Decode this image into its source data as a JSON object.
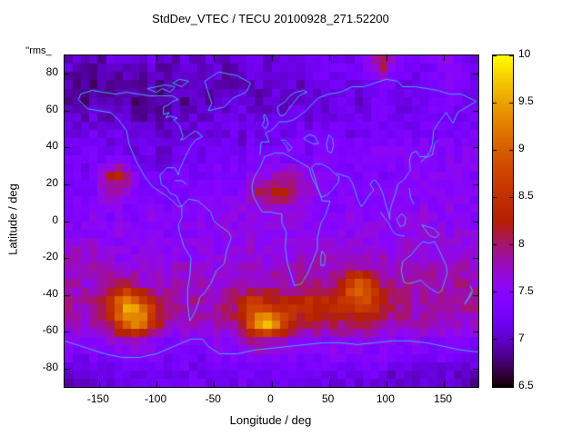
{
  "chart_data": {
    "type": "heatmap",
    "title": "StdDev_VTEC / TECU 20100928_271.52200",
    "key_label": "''rms_",
    "xlabel": "Longitude / deg",
    "ylabel": "Latitude / deg",
    "value_units": "TECU",
    "xlim": [
      -180,
      180
    ],
    "ylim": [
      -90,
      90
    ],
    "zmin": 6.5,
    "zmax": 10,
    "x_ticks": [
      -150,
      -100,
      -50,
      0,
      50,
      100,
      150
    ],
    "y_ticks": [
      -80,
      -60,
      -40,
      -20,
      0,
      20,
      40,
      60,
      80
    ],
    "colorbar_ticks": [
      6.5,
      7,
      7.5,
      8,
      8.5,
      9,
      9.5,
      10
    ],
    "palette": "gnuplot pm3d default black-purple-violet-red-orange-yellow (rgbformulae 7,5,15)",
    "coastline_color": "#47aaf5",
    "grid": {
      "lon_center_start": -175,
      "lon_step": 10,
      "lat_center_start": 85,
      "lat_step": -10,
      "note": "values[row][col]; rows run from lat 85N down to 85S, cols from lon 175W to 175E; estimated VTEC standard deviation in TECU"
    },
    "values": [
      [
        7.0,
        7.0,
        6.9,
        7.0,
        7.1,
        7.0,
        7.0,
        7.1,
        7.0,
        7.0,
        7.1,
        7.0,
        7.1,
        7.0,
        7.0,
        7.1,
        7.2,
        7.1,
        7.2,
        7.1,
        7.2,
        7.3,
        7.2,
        7.3,
        7.2,
        7.3,
        7.5,
        8.3,
        7.6,
        7.3,
        7.2,
        7.3,
        7.4,
        7.5,
        7.4,
        7.2
      ],
      [
        6.9,
        6.9,
        6.8,
        6.9,
        6.9,
        6.8,
        6.9,
        6.9,
        6.8,
        6.9,
        7.0,
        6.9,
        7.0,
        7.0,
        6.9,
        7.0,
        7.0,
        7.1,
        7.0,
        7.1,
        7.0,
        7.1,
        7.1,
        7.2,
        7.1,
        7.2,
        7.2,
        7.4,
        7.3,
        7.2,
        7.3,
        7.2,
        7.3,
        7.4,
        7.3,
        7.2
      ],
      [
        6.9,
        6.8,
        6.9,
        6.9,
        6.8,
        6.9,
        6.8,
        6.9,
        6.9,
        7.0,
        6.9,
        7.0,
        6.9,
        7.0,
        7.0,
        7.1,
        7.0,
        7.0,
        7.1,
        7.0,
        7.1,
        7.0,
        7.1,
        7.1,
        7.2,
        7.1,
        7.2,
        7.2,
        7.3,
        7.2,
        7.2,
        7.3,
        7.2,
        7.3,
        7.3,
        7.2
      ],
      [
        7.1,
        7.0,
        7.1,
        7.0,
        7.1,
        7.0,
        6.9,
        7.0,
        6.9,
        7.0,
        7.0,
        7.1,
        7.0,
        7.1,
        7.1,
        7.2,
        7.1,
        7.1,
        7.2,
        7.1,
        7.2,
        7.1,
        7.2,
        7.2,
        7.1,
        7.2,
        7.3,
        7.2,
        7.3,
        7.2,
        7.3,
        7.3,
        7.2,
        7.3,
        7.2,
        7.3
      ],
      [
        7.2,
        7.1,
        7.2,
        7.1,
        7.2,
        7.1,
        7.0,
        7.1,
        7.0,
        7.1,
        7.1,
        7.2,
        7.1,
        7.2,
        7.2,
        7.1,
        7.2,
        7.2,
        7.3,
        7.2,
        7.3,
        7.2,
        7.3,
        7.3,
        7.2,
        7.3,
        7.3,
        7.4,
        7.3,
        7.4,
        7.3,
        7.4,
        7.3,
        7.4,
        7.4,
        7.3
      ],
      [
        7.3,
        7.2,
        7.3,
        7.2,
        7.3,
        7.2,
        7.1,
        7.2,
        7.1,
        7.2,
        7.2,
        7.3,
        7.2,
        7.3,
        7.3,
        7.2,
        7.3,
        7.3,
        7.4,
        7.3,
        7.4,
        7.3,
        7.4,
        7.4,
        7.3,
        7.4,
        7.4,
        7.5,
        7.4,
        7.5,
        7.4,
        7.5,
        7.4,
        7.5,
        7.4,
        7.5
      ],
      [
        7.3,
        7.2,
        7.4,
        7.8,
        8.4,
        7.9,
        7.4,
        7.3,
        7.2,
        7.3,
        7.3,
        7.2,
        7.3,
        7.4,
        7.3,
        7.4,
        7.5,
        7.6,
        7.8,
        7.9,
        7.8,
        7.6,
        7.4,
        7.4,
        7.3,
        7.4,
        7.4,
        7.3,
        7.4,
        7.4,
        7.5,
        7.4,
        7.5,
        7.4,
        7.5,
        7.4
      ],
      [
        7.4,
        7.3,
        7.4,
        7.6,
        7.8,
        7.5,
        7.4,
        7.3,
        7.4,
        7.3,
        7.4,
        7.3,
        7.4,
        7.5,
        7.4,
        7.6,
        7.9,
        8.2,
        8.3,
        8.1,
        7.9,
        7.6,
        7.5,
        7.4,
        7.5,
        7.4,
        7.5,
        7.4,
        7.5,
        7.4,
        7.5,
        7.5,
        7.4,
        7.5,
        7.4,
        7.5
      ],
      [
        7.4,
        7.4,
        7.5,
        7.4,
        7.5,
        7.4,
        7.4,
        7.5,
        7.4,
        7.5,
        7.4,
        7.5,
        7.4,
        7.5,
        7.5,
        7.6,
        7.5,
        7.6,
        7.5,
        7.6,
        7.5,
        7.4,
        7.5,
        7.4,
        7.5,
        7.5,
        7.4,
        7.5,
        7.5,
        7.6,
        7.5,
        7.6,
        7.5,
        7.6,
        7.5,
        7.4
      ],
      [
        7.5,
        7.4,
        7.5,
        7.4,
        7.5,
        7.5,
        7.4,
        7.5,
        7.5,
        7.4,
        7.5,
        7.5,
        7.6,
        7.5,
        7.6,
        7.5,
        7.6,
        7.5,
        7.6,
        7.5,
        7.6,
        7.5,
        7.6,
        7.5,
        7.5,
        7.6,
        7.5,
        7.6,
        7.5,
        7.6,
        7.5,
        7.6,
        7.6,
        7.5,
        7.6,
        7.5
      ],
      [
        7.7,
        7.8,
        7.7,
        7.6,
        7.5,
        7.6,
        7.5,
        7.6,
        7.5,
        7.6,
        7.5,
        7.6,
        7.6,
        7.5,
        7.6,
        7.6,
        7.7,
        7.6,
        7.7,
        7.6,
        7.7,
        7.6,
        7.7,
        7.6,
        7.7,
        7.6,
        7.7,
        7.7,
        7.6,
        7.7,
        7.6,
        7.7,
        7.6,
        7.7,
        7.6,
        7.7
      ],
      [
        7.8,
        7.7,
        7.8,
        7.7,
        7.6,
        7.7,
        7.6,
        7.7,
        7.6,
        7.7,
        7.7,
        7.6,
        7.7,
        7.6,
        7.7,
        7.7,
        7.8,
        7.7,
        7.8,
        7.7,
        7.8,
        7.7,
        7.8,
        7.7,
        7.8,
        7.8,
        7.7,
        7.8,
        7.7,
        7.8,
        7.7,
        7.8,
        7.7,
        7.8,
        7.8,
        7.7
      ],
      [
        7.8,
        7.7,
        7.8,
        7.9,
        8.0,
        8.1,
        7.9,
        7.8,
        7.7,
        7.8,
        7.7,
        7.8,
        7.8,
        7.7,
        7.8,
        7.8,
        7.9,
        7.8,
        7.9,
        7.8,
        7.9,
        8.0,
        7.9,
        8.0,
        8.6,
        9.3,
        8.8,
        8.0,
        7.9,
        7.8,
        7.9,
        7.8,
        7.9,
        7.8,
        7.9,
        7.8
      ],
      [
        7.9,
        7.8,
        7.9,
        8.3,
        9.0,
        9.8,
        9.2,
        8.6,
        8.0,
        7.9,
        7.8,
        7.9,
        7.8,
        7.9,
        8.0,
        8.3,
        8.8,
        8.5,
        8.3,
        8.5,
        8.4,
        8.6,
        8.4,
        8.5,
        8.6,
        8.8,
        8.7,
        8.4,
        8.1,
        7.9,
        7.8,
        7.9,
        7.8,
        7.9,
        7.8,
        7.9
      ],
      [
        7.8,
        7.7,
        7.8,
        8.0,
        8.6,
        9.3,
        9.6,
        8.8,
        8.1,
        7.8,
        7.7,
        7.8,
        7.7,
        7.8,
        7.9,
        8.2,
        9.2,
        10.0,
        9.4,
        8.6,
        8.2,
        8.1,
        8.0,
        8.1,
        8.0,
        8.1,
        8.0,
        7.9,
        7.8,
        7.9,
        7.8,
        7.9,
        7.8,
        7.7,
        7.8,
        7.7
      ],
      [
        7.5,
        7.4,
        7.5,
        7.6,
        7.7,
        7.8,
        7.7,
        7.6,
        7.5,
        7.4,
        7.5,
        7.4,
        7.5,
        7.6,
        7.5,
        7.7,
        7.9,
        8.0,
        7.8,
        7.6,
        7.5,
        7.6,
        7.5,
        7.6,
        7.5,
        7.6,
        7.5,
        7.4,
        7.5,
        7.4,
        7.5,
        7.4,
        7.5,
        7.4,
        7.5,
        7.4
      ],
      [
        7.3,
        7.2,
        7.3,
        7.2,
        7.3,
        7.4,
        7.3,
        7.4,
        7.3,
        7.2,
        7.3,
        7.2,
        7.3,
        7.4,
        7.3,
        7.4,
        7.5,
        7.4,
        7.5,
        7.4,
        7.3,
        7.4,
        7.3,
        7.4,
        7.3,
        7.4,
        7.3,
        7.4,
        7.3,
        7.2,
        7.3,
        7.2,
        7.3,
        7.2,
        7.3,
        7.2
      ],
      [
        7.0,
        7.1,
        7.0,
        7.1,
        7.2,
        7.1,
        7.2,
        7.1,
        7.2,
        7.1,
        7.2,
        7.3,
        7.2,
        7.3,
        7.2,
        7.3,
        7.2,
        7.3,
        7.2,
        7.3,
        7.2,
        7.1,
        7.2,
        7.1,
        7.2,
        7.1,
        7.2,
        7.1,
        7.0,
        7.1,
        7.0,
        7.1,
        7.0,
        7.1,
        7.0,
        6.9
      ]
    ],
    "coastlines": [
      [
        -168,
        66,
        -160,
        61,
        -150,
        60,
        -140,
        59,
        -133,
        55,
        -126,
        49,
        -124,
        42,
        -118,
        33,
        -110,
        24,
        -104,
        19,
        -97,
        16,
        -92,
        14,
        -86,
        11,
        -81,
        8,
        -78,
        8,
        -80,
        10,
        -83,
        14,
        -88,
        15,
        -91,
        18,
        -96,
        20,
        -97,
        25,
        -91,
        29,
        -84,
        29,
        -81,
        25,
        -80,
        28,
        -75,
        35,
        -70,
        41,
        -66,
        44,
        -60,
        46,
        -66,
        49,
        -71,
        47,
        -75,
        45,
        -79,
        44,
        -77,
        46,
        -80,
        52,
        -85,
        55,
        -82,
        56,
        -88,
        57,
        -92,
        56,
        -89,
        59,
        -94,
        58,
        -94,
        62,
        -90,
        63,
        -86,
        65,
        -81,
        66,
        -86,
        68,
        -96,
        68,
        -106,
        68,
        -116,
        69,
        -126,
        70,
        -136,
        69,
        -146,
        70,
        -156,
        71,
        -166,
        69,
        -168,
        66
      ],
      [
        -55,
        60,
        -48,
        61,
        -41,
        62,
        -33,
        67,
        -22,
        70,
        -18,
        75,
        -30,
        79,
        -46,
        81,
        -58,
        76,
        -55,
        70,
        -52,
        64,
        -55,
        60
      ],
      [
        -78,
        8,
        -72,
        12,
        -64,
        11,
        -60,
        9,
        -53,
        5,
        -50,
        0,
        -44,
        -3,
        -37,
        -6,
        -35,
        -9,
        -39,
        -16,
        -41,
        -23,
        -48,
        -27,
        -53,
        -34,
        -58,
        -39,
        -62,
        -41,
        -65,
        -47,
        -69,
        -52,
        -71,
        -54,
        -72,
        -50,
        -73,
        -44,
        -73,
        -37,
        -71,
        -30,
        -70,
        -20,
        -76,
        -14,
        -80,
        -6,
        -81,
        -2,
        -78,
        2,
        -78,
        8
      ],
      [
        -6,
        35,
        -10,
        29,
        -15,
        24,
        -17,
        19,
        -16,
        14,
        -12,
        9,
        -8,
        5,
        -1,
        5,
        6,
        4,
        9,
        4,
        9,
        -1,
        13,
        -6,
        12,
        -14,
        14,
        -23,
        18,
        -31,
        20,
        -35,
        26,
        -34,
        31,
        -29,
        35,
        -23,
        40,
        -15,
        40,
        -9,
        43,
        -1,
        47,
        3,
        51,
        11,
        44,
        11,
        43,
        14,
        39,
        19,
        35,
        24,
        33,
        29,
        22,
        33,
        10,
        37,
        3,
        37,
        -6,
        35
      ],
      [
        -10,
        36,
        -9,
        43,
        -2,
        43,
        -5,
        48,
        -1,
        49,
        3,
        51,
        7,
        54,
        11,
        54,
        13,
        54,
        19,
        55,
        24,
        57,
        28,
        59,
        30,
        60
      ],
      [
        8,
        57,
        6,
        59,
        5,
        62,
        12,
        65,
        16,
        68,
        21,
        70,
        28,
        71,
        31,
        70,
        27,
        69,
        24,
        68,
        19,
        64,
        14,
        60,
        12,
        58,
        8,
        57
      ],
      [
        -5,
        50,
        -3,
        53,
        -4,
        56,
        -6,
        58,
        -7,
        57,
        -6,
        55,
        -8,
        52,
        -5,
        50
      ],
      [
        28,
        45,
        33,
        47,
        38,
        46,
        41,
        42,
        36,
        42,
        30,
        44,
        28,
        45
      ],
      [
        50,
        47,
        53,
        45,
        54,
        41,
        52,
        37,
        49,
        38,
        48,
        42,
        50,
        47
      ],
      [
        30,
        60,
        36,
        64,
        41,
        67,
        50,
        69,
        60,
        70,
        70,
        73,
        80,
        73,
        90,
        75,
        100,
        77,
        110,
        76,
        114,
        73,
        125,
        73,
        135,
        72,
        145,
        71,
        155,
        69,
        165,
        69,
        172,
        67,
        178,
        65
      ],
      [
        178,
        65,
        170,
        62,
        162,
        59,
        158,
        53,
        152,
        59,
        146,
        54,
        141,
        49,
        140,
        42,
        138,
        38,
        135,
        35,
        129,
        35,
        126,
        38,
        122,
        37,
        120,
        33,
        121,
        28,
        116,
        23,
        110,
        20,
        108,
        15,
        105,
        10,
        103,
        5,
        103,
        1,
        101,
        6,
        99,
        10,
        97,
        15,
        94,
        19,
        91,
        22,
        88,
        22,
        86,
        20,
        89,
        17,
        85,
        14,
        80,
        9,
        78,
        8,
        75,
        12,
        72,
        18,
        70,
        21,
        67,
        24,
        61,
        25,
        57,
        26
      ],
      [
        35,
        29,
        39,
        21,
        43,
        13,
        48,
        14,
        53,
        17,
        58,
        21,
        59,
        24,
        55,
        26,
        50,
        29,
        44,
        31,
        38,
        31,
        35,
        29
      ],
      [
        114,
        -22,
        113,
        -27,
        115,
        -33,
        119,
        -34,
        125,
        -33,
        130,
        -32,
        135,
        -35,
        139,
        -37,
        145,
        -39,
        148,
        -38,
        150,
        -34,
        153,
        -28,
        152,
        -24,
        149,
        -20,
        146,
        -16,
        142,
        -11,
        137,
        -12,
        132,
        -11,
        127,
        -14,
        122,
        -18,
        114,
        -22
      ],
      [
        -180,
        -65,
        -160,
        -69,
        -145,
        -72,
        -130,
        -74,
        -115,
        -74,
        -100,
        -72,
        -85,
        -68,
        -70,
        -64,
        -60,
        -64,
        -55,
        -68,
        -45,
        -72,
        -30,
        -72,
        -15,
        -70,
        0,
        -69,
        15,
        -68,
        30,
        -67,
        45,
        -66,
        60,
        -66,
        75,
        -67,
        90,
        -66,
        105,
        -65,
        120,
        -65,
        135,
        -66,
        150,
        -68,
        165,
        -70,
        180,
        -71
      ],
      [
        44,
        -16,
        47,
        -19,
        46,
        -24,
        43,
        -24,
        43,
        -19,
        44,
        -16
      ],
      [
        130,
        32,
        133,
        34,
        136,
        35,
        140,
        36,
        141,
        39,
        142,
        42,
        145,
        44
      ],
      [
        173,
        -35,
        175,
        -38,
        173,
        -41,
        168,
        -45,
        171,
        -42,
        174,
        -38
      ],
      [
        95,
        5,
        98,
        2,
        102,
        -1,
        105,
        -5,
        108,
        -7,
        113,
        -8,
        116,
        -8
      ],
      [
        109,
        1,
        113,
        4,
        117,
        2,
        116,
        -2,
        112,
        -3,
        109,
        1
      ],
      [
        131,
        -2,
        136,
        -3,
        141,
        -4,
        146,
        -7,
        143,
        -9,
        138,
        -8,
        133,
        -4,
        131,
        -2
      ],
      [
        -100,
        70,
        -95,
        72,
        -88,
        70,
        -84,
        73,
        -92,
        74,
        -100,
        73,
        -108,
        72,
        -100,
        70
      ],
      [
        -78,
        73,
        -72,
        76,
        -80,
        77,
        -86,
        75,
        -78,
        73
      ],
      [
        8,
        44,
        12,
        44,
        16,
        41,
        18,
        40,
        15,
        38,
        13,
        41,
        10,
        43
      ],
      [
        -84,
        22,
        -78,
        22,
        -74,
        20
      ],
      [
        120,
        18,
        121,
        13,
        124,
        9
      ]
    ]
  }
}
